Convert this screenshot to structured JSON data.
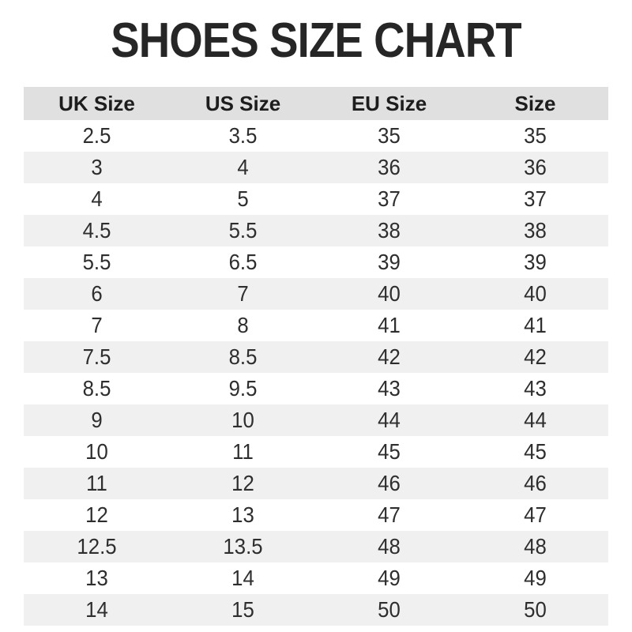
{
  "chart_data": {
    "type": "table",
    "title": "SHOES SIZE CHART",
    "columns": [
      "UK Size",
      "US Size",
      "EU Size",
      "Size"
    ],
    "rows": [
      [
        "2.5",
        "3.5",
        "35",
        "35"
      ],
      [
        "3",
        "4",
        "36",
        "36"
      ],
      [
        "4",
        "5",
        "37",
        "37"
      ],
      [
        "4.5",
        "5.5",
        "38",
        "38"
      ],
      [
        "5.5",
        "6.5",
        "39",
        "39"
      ],
      [
        "6",
        "7",
        "40",
        "40"
      ],
      [
        "7",
        "8",
        "41",
        "41"
      ],
      [
        "7.5",
        "8.5",
        "42",
        "42"
      ],
      [
        "8.5",
        "9.5",
        "43",
        "43"
      ],
      [
        "9",
        "10",
        "44",
        "44"
      ],
      [
        "10",
        "11",
        "45",
        "45"
      ],
      [
        "11",
        "12",
        "46",
        "46"
      ],
      [
        "12",
        "13",
        "47",
        "47"
      ],
      [
        "12.5",
        "13.5",
        "48",
        "48"
      ],
      [
        "13",
        "14",
        "49",
        "49"
      ],
      [
        "14",
        "15",
        "50",
        "50"
      ]
    ],
    "layout_hints": {
      "row_striping": "even rows shaded",
      "alignment": "center"
    }
  },
  "colors": {
    "header_bg": "#e0e0e0",
    "alt_row_bg": "#f0f0f0",
    "title_color": "#262626",
    "text_color": "#2e2e2e",
    "page_bg": "#ffffff"
  }
}
